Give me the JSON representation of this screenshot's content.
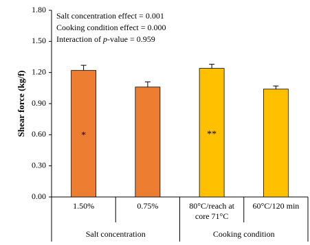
{
  "chart_data": {
    "type": "bar",
    "ylabel": "Shear force (kg/f)",
    "categories": [
      "1.50%",
      "0.75%",
      "80°C/reach at core 71°C",
      "60°C/120  min"
    ],
    "values": [
      1.22,
      1.06,
      1.24,
      1.04
    ],
    "errors": [
      0.05,
      0.05,
      0.04,
      0.03
    ],
    "colors": [
      "#ED7D31",
      "#ED7D31",
      "#FFC000",
      "#FFC000"
    ],
    "groups": [
      {
        "label": "Salt concentration",
        "size": 2
      },
      {
        "label": "Cooking condition",
        "size": 2
      }
    ],
    "bar_annotations": [
      {
        "category": "1.50%",
        "text": "*"
      },
      {
        "category": "80°C/reach at core 71°C",
        "text": "**"
      }
    ],
    "notes": [
      [
        "Salt concentration effect = 0.001"
      ],
      [
        "Cooking condition effect = 0.000"
      ],
      [
        "Interaction of ",
        "p",
        "-value = 0.959"
      ]
    ],
    "ylim": [
      0,
      1.8
    ],
    "yticks": [
      {
        "value": 0,
        "label": "0.00"
      },
      {
        "value": 0.3,
        "label": "0.30"
      },
      {
        "value": 0.6,
        "label": "0.60"
      },
      {
        "value": 0.9,
        "label": "0.90"
      },
      {
        "value": 1.2,
        "label": "1.20"
      },
      {
        "value": 1.5,
        "label": "1.50"
      },
      {
        "value": 1.8,
        "label": "1.80"
      }
    ]
  }
}
